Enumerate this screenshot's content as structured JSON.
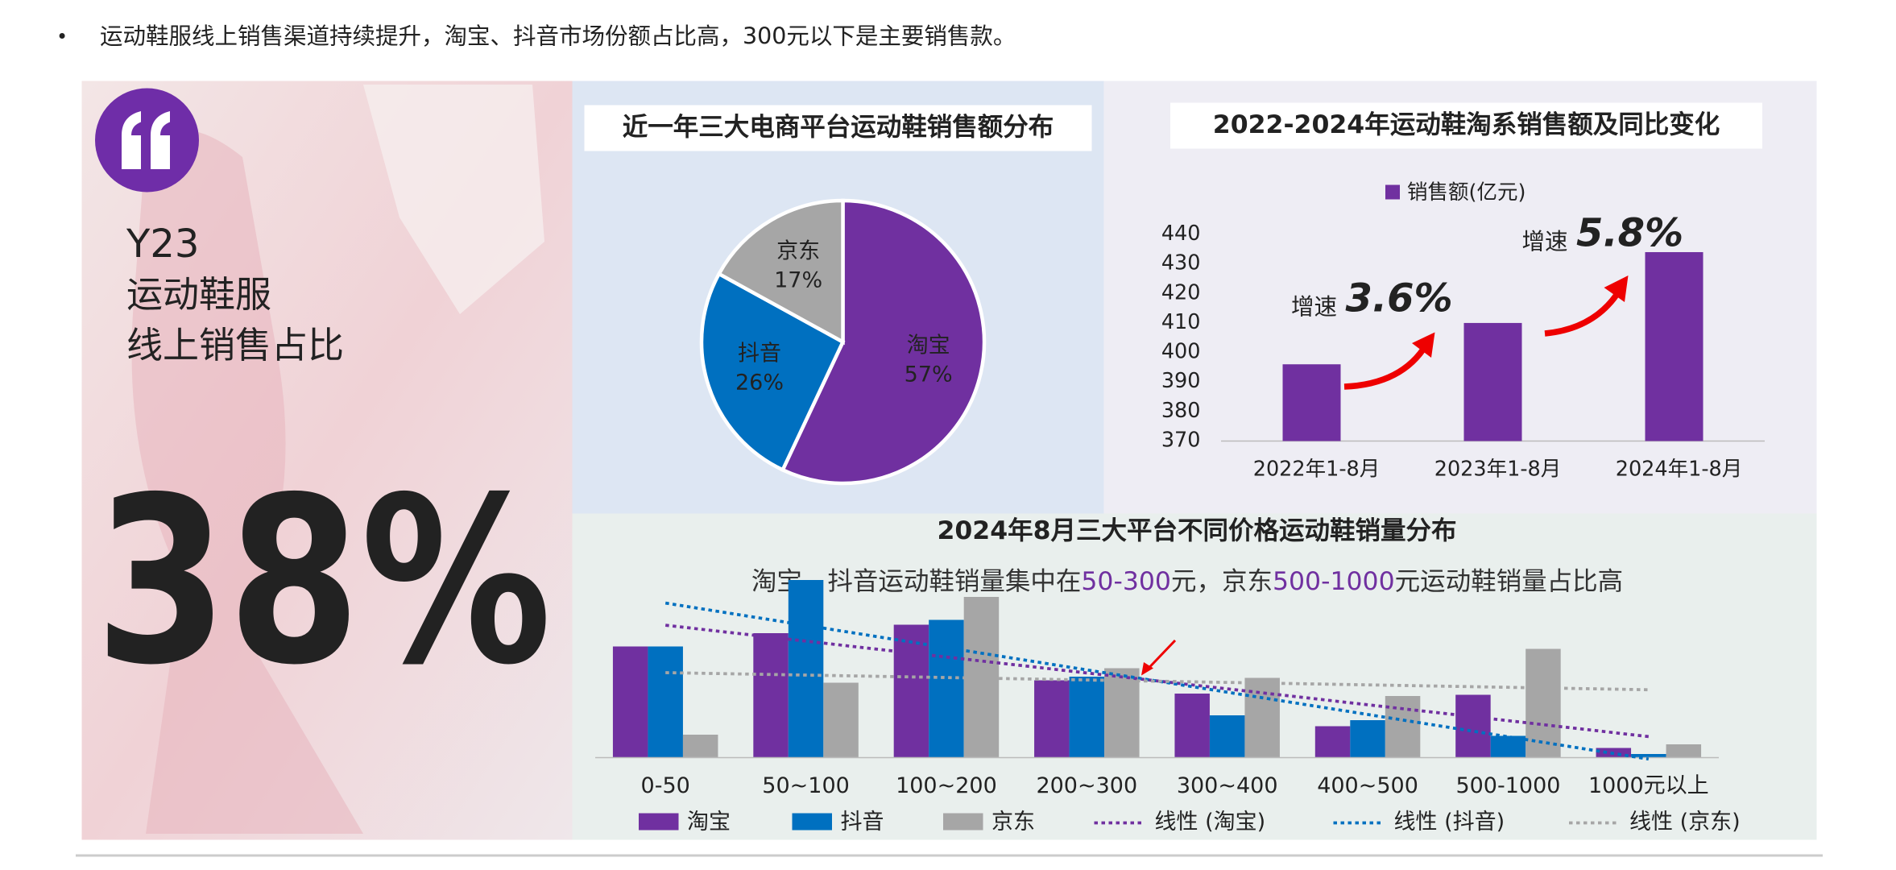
{
  "bullet": "运动鞋服线上销售渠道持续提升，淘宝、抖音市场份额占比高，300元以下是主要销售款。",
  "left_panel": {
    "line1": "Y23",
    "line2": "运动鞋服",
    "line3": "线上销售占比",
    "big_number": "38%"
  },
  "chart_data": [
    {
      "type": "pie",
      "title": "近一年三大电商平台运动鞋销售额分布",
      "categories": [
        "淘宝",
        "抖音",
        "京东"
      ],
      "values": [
        57,
        26,
        17
      ],
      "value_labels": [
        "57%",
        "26%",
        "17%"
      ],
      "colors": [
        "#7030a0",
        "#0070c0",
        "#a6a6a6"
      ]
    },
    {
      "type": "bar",
      "title": "2022-2024年运动鞋淘系销售额及同比变化",
      "categories": [
        "2022年1-8月",
        "2023年1-8月",
        "2024年1-8月"
      ],
      "series": [
        {
          "name": "销售额(亿元)",
          "color": "#7030a0",
          "values": [
            396,
            410,
            434
          ]
        }
      ],
      "ylim": [
        370,
        440
      ],
      "yticks": [
        370,
        380,
        390,
        400,
        410,
        420,
        430,
        440
      ],
      "annotations": [
        {
          "prefix": "增速",
          "text": "3.6%"
        },
        {
          "prefix": "增速",
          "text": "5.8%"
        }
      ]
    },
    {
      "type": "grouped_bar",
      "title": "2024年8月三大平台不同价格运动鞋销量分布",
      "subtitle_parts": [
        "淘宝、抖音运动鞋销量集中在",
        "50-300",
        "元，京东",
        "500-1000",
        "元运动鞋销量占比高"
      ],
      "highlight_color": "#7030a0",
      "categories": [
        "0-50",
        "50~100",
        "100~200",
        "200~300",
        "300~400",
        "400~500",
        "500-1000",
        "1000元以上"
      ],
      "series": [
        {
          "name": "淘宝",
          "color": "#7030a0",
          "values": [
            92,
            103,
            110,
            64,
            53,
            26,
            52,
            8
          ],
          "trend_name": "线性 (淘宝)"
        },
        {
          "name": "抖音",
          "color": "#0070c0",
          "values": [
            92,
            147,
            114,
            67,
            35,
            31,
            18,
            3
          ],
          "trend_name": "线性 (抖音)"
        },
        {
          "name": "京东",
          "color": "#a6a6a6",
          "values": [
            19,
            62,
            133,
            74,
            66,
            51,
            90,
            11
          ],
          "trend_name": "线性 (京东)"
        }
      ],
      "ylim": [
        0,
        150
      ]
    }
  ]
}
